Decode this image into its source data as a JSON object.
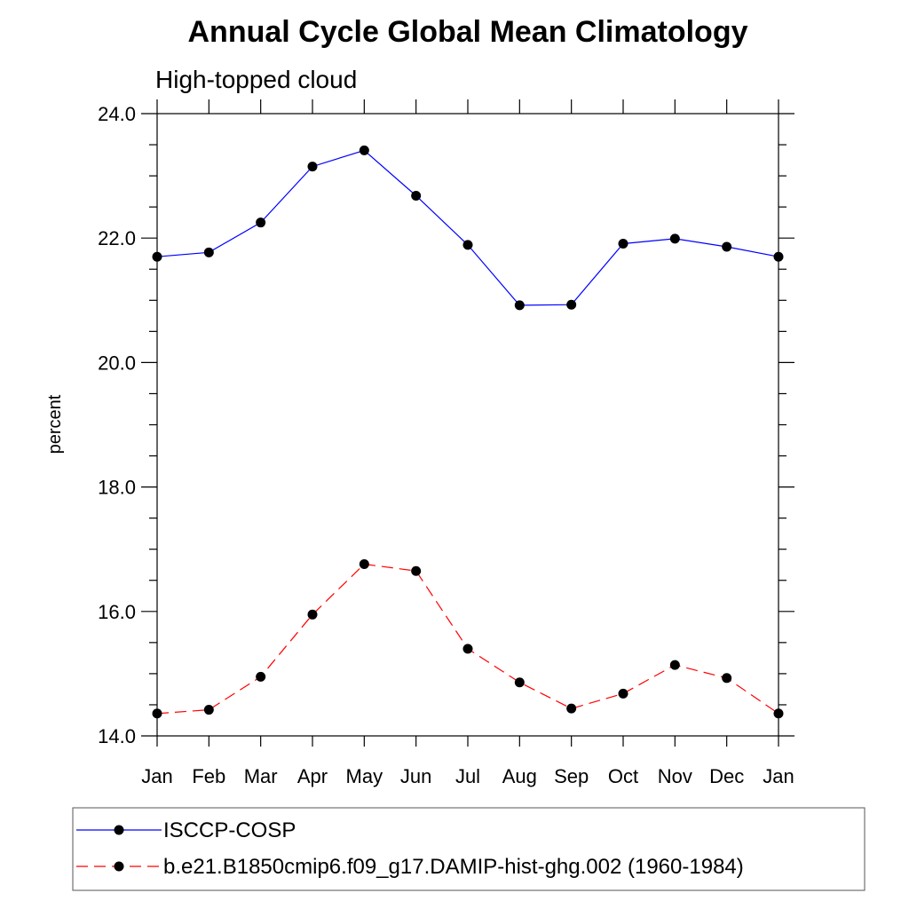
{
  "chart_data": {
    "type": "line",
    "title": "Annual Cycle Global Mean Climatology",
    "subtitle": "High-topped cloud",
    "xlabel": "",
    "ylabel": "percent",
    "categories": [
      "Jan",
      "Feb",
      "Mar",
      "Apr",
      "May",
      "Jun",
      "Jul",
      "Aug",
      "Sep",
      "Oct",
      "Nov",
      "Dec",
      "Jan"
    ],
    "ylim": [
      14.0,
      24.0
    ],
    "yticks": [
      "14.0",
      "16.0",
      "18.0",
      "20.0",
      "22.0",
      "24.0"
    ],
    "grid": false,
    "legend_position": "bottom",
    "series": [
      {
        "name": "ISCCP-COSP",
        "color": "#0000ff",
        "line_style": "solid",
        "values": [
          21.7,
          21.77,
          22.25,
          23.15,
          23.41,
          22.68,
          21.89,
          20.92,
          20.93,
          21.91,
          21.99,
          21.86,
          21.7
        ]
      },
      {
        "name": "b.e21.B1850cmip6.f09_g17.DAMIP-hist-ghg.002 (1960-1984)",
        "color": "#ff0000",
        "line_style": "dashed",
        "values": [
          14.36,
          14.42,
          14.95,
          15.95,
          16.76,
          16.65,
          15.4,
          14.86,
          14.44,
          14.68,
          15.14,
          14.93,
          14.36
        ]
      }
    ]
  }
}
